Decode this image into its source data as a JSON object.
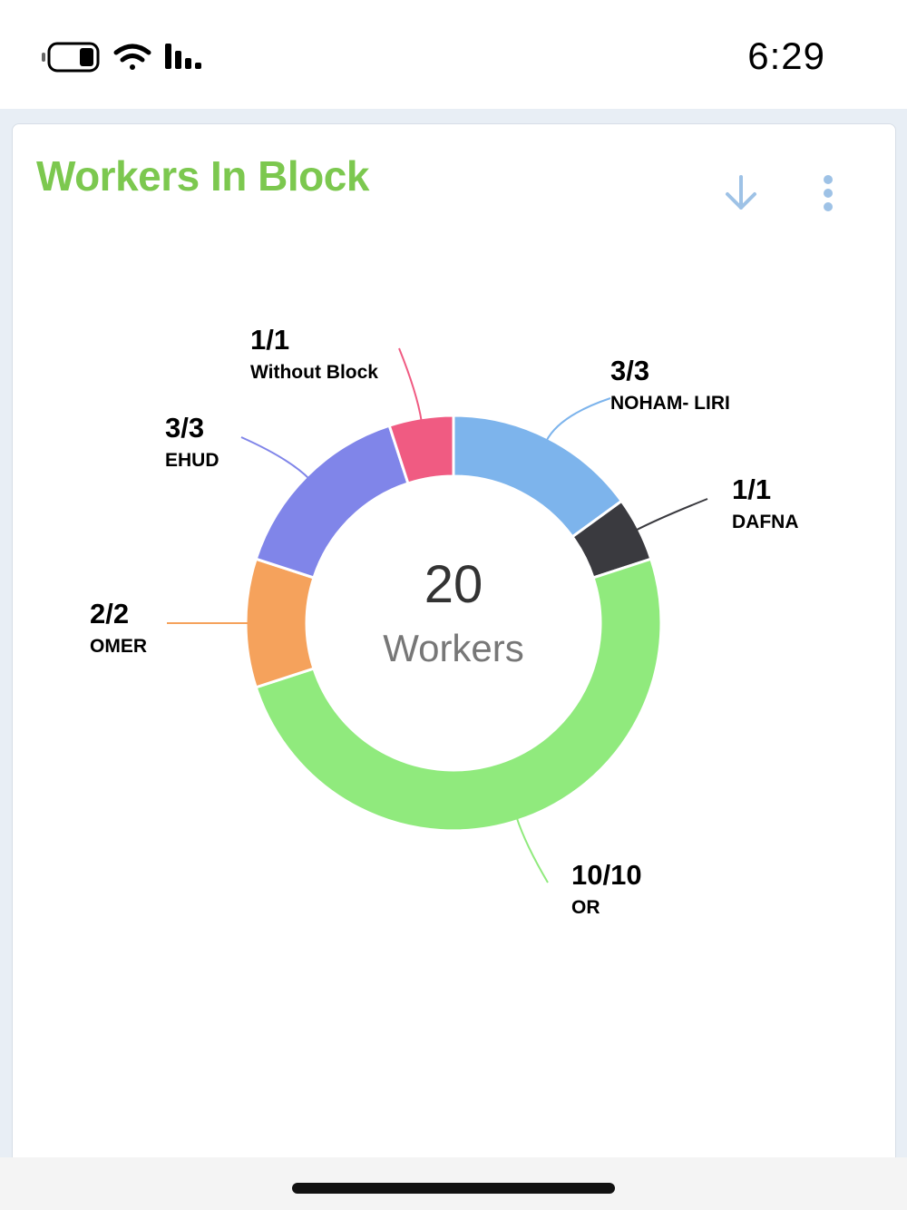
{
  "status_bar": {
    "time": "6:29",
    "icons": [
      "battery-icon",
      "wifi-icon",
      "signal-icon"
    ]
  },
  "widget": {
    "title": "Workers In Block",
    "title_color": "#7cc84f",
    "actions": [
      "download-icon",
      "more-vertical-icon"
    ],
    "action_color": "#9ec2e6"
  },
  "chart_data": {
    "type": "pie",
    "variant": "donut",
    "center_value": "20",
    "center_label": "Workers",
    "slices": [
      {
        "name": "NOHAM- LIRI",
        "ratio": "3/3",
        "value": 3,
        "color": "#7db4ec"
      },
      {
        "name": "DAFNA",
        "ratio": "1/1",
        "value": 1,
        "color": "#3a3a3f"
      },
      {
        "name": "OR",
        "ratio": "10/10",
        "value": 10,
        "color": "#90ea7d"
      },
      {
        "name": "OMER",
        "ratio": "2/2",
        "value": 2,
        "color": "#f5a25c"
      },
      {
        "name": "EHUD",
        "ratio": "3/3",
        "value": 3,
        "color": "#8085e9"
      },
      {
        "name": "Without Block",
        "ratio": "1/1",
        "value": 1,
        "color": "#f05b82"
      }
    ]
  }
}
